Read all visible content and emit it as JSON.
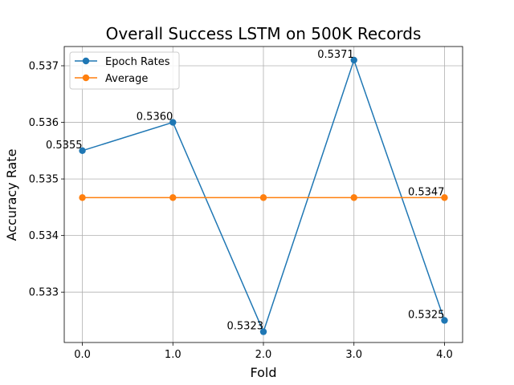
{
  "chart_data": {
    "type": "line",
    "title": "Overall Success LSTM on 500K Records",
    "xlabel": "Fold",
    "ylabel": "Accuracy Rate",
    "x": [
      0.0,
      1.0,
      2.0,
      3.0,
      4.0
    ],
    "x_tick_labels": [
      "0.0",
      "1.0",
      "2.0",
      "3.0",
      "4.0"
    ],
    "y_ticks": [
      0.533,
      0.534,
      0.535,
      0.536,
      0.537
    ],
    "y_tick_labels": [
      "0.533",
      "0.534",
      "0.535",
      "0.536",
      "0.537"
    ],
    "xlim": [
      -0.2,
      4.2
    ],
    "ylim": [
      0.53211,
      0.53734
    ],
    "grid": true,
    "legend_position": "top-left",
    "series": [
      {
        "name": "Epoch Rates",
        "color": "#1f77b4",
        "marker": "circle",
        "values": [
          0.5355,
          0.536,
          0.5323,
          0.5371,
          0.5325
        ],
        "labels": [
          "0.5355",
          "0.5360",
          "0.5323",
          "0.5371",
          "0.5325"
        ]
      },
      {
        "name": "Average",
        "color": "#ff7f0e",
        "marker": "circle",
        "values": [
          0.53467,
          0.53467,
          0.53467,
          0.53467,
          0.53467
        ],
        "labels": [
          "",
          "",
          "",
          "",
          "0.5347"
        ]
      }
    ]
  }
}
